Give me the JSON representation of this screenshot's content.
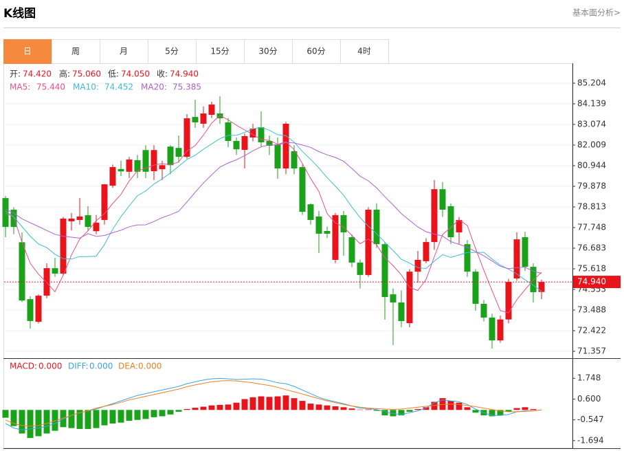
{
  "header": {
    "title": "K线图",
    "link": "基本面分析>"
  },
  "tabs": {
    "items": [
      "日",
      "周",
      "月",
      "5分",
      "15分",
      "30分",
      "60分",
      "4时"
    ],
    "active": 0
  },
  "chart_data": [
    {
      "type": "candlestick",
      "grid": true,
      "up_color": "#e8141c",
      "down_color": "#1aa31a",
      "info_value_color": "#e8141c",
      "info": [
        {
          "name": "开:",
          "value": 74.42,
          "label": "74.420"
        },
        {
          "name": "高:",
          "value": 75.06,
          "label": "75.060"
        },
        {
          "name": "低:",
          "value": 74.05,
          "label": "74.050"
        },
        {
          "name": "收:",
          "value": 74.94,
          "label": "74.940"
        }
      ],
      "last_price": {
        "value": 74.94,
        "label": "74.940"
      },
      "ylim": [
        71.037,
        86.198
      ],
      "yticks": [
        85.204,
        84.139,
        83.074,
        82.009,
        80.944,
        79.878,
        78.813,
        77.748,
        76.683,
        75.618,
        74.553,
        73.488,
        72.422,
        71.357
      ],
      "open": [
        79.27,
        78.67,
        76.99,
        74.05,
        72.88,
        74.23,
        75.65,
        75.37,
        78.07,
        78.14,
        78.39,
        77.56,
        78.14,
        79.91,
        80.77,
        80.63,
        81.23,
        81.75,
        80.66,
        80.76,
        81.93,
        81.86,
        81.4,
        83.46,
        83.11,
        83.57,
        83.64,
        83.18,
        82.22,
        81.76,
        82.4,
        82.93,
        82.22,
        82.04,
        80.8,
        81.69,
        80.87,
        78.95,
        78.32,
        77.57,
        76.08,
        78.39,
        77.25,
        75.94,
        75.3,
        78.67,
        76.89,
        74.3,
        73.88,
        72.81,
        75.47,
        76.01,
        77.0,
        79.73,
        78.85,
        77.5,
        76.89,
        75.47,
        73.81,
        73.1,
        71.92,
        73.0,
        75.12,
        77.25,
        75.72,
        74.42
      ],
      "high": [
        79.38,
        78.8,
        77.5,
        74.2,
        74.3,
        75.9,
        76.18,
        78.3,
        78.5,
        79.27,
        78.85,
        78.4,
        80.0,
        81.0,
        81.2,
        81.4,
        81.5,
        82.0,
        82.0,
        81.2,
        82.0,
        82.5,
        83.6,
        84.35,
        84.0,
        84.25,
        84.53,
        83.4,
        82.4,
        82.6,
        83.1,
        83.75,
        82.5,
        82.4,
        83.2,
        82.0,
        81.0,
        79.0,
        78.6,
        77.8,
        78.5,
        78.6,
        77.4,
        76.1,
        78.8,
        79.0,
        77.0,
        74.6,
        74.5,
        75.6,
        76.54,
        77.2,
        80.2,
        80.1,
        79.0,
        78.3,
        77.1,
        75.6,
        74.0,
        73.3,
        73.2,
        75.1,
        77.5,
        77.53,
        75.9,
        75.06
      ],
      "low": [
        77.25,
        77.4,
        73.9,
        72.53,
        72.8,
        74.1,
        75.2,
        75.3,
        77.6,
        77.9,
        77.6,
        77.4,
        77.9,
        79.8,
        80.4,
        80.3,
        80.3,
        80.3,
        80.2,
        80.2,
        80.5,
        81.1,
        81.3,
        82.9,
        82.9,
        83.4,
        83.1,
        81.9,
        81.5,
        80.8,
        82.2,
        81.9,
        81.5,
        80.27,
        80.5,
        80.5,
        78.4,
        77.9,
        76.43,
        77.2,
        75.9,
        76.29,
        75.7,
        74.6,
        75.2,
        76.7,
        72.99,
        71.68,
        72.6,
        72.6,
        74.9,
        75.9,
        76.6,
        78.3,
        76.9,
        76.9,
        75.2,
        73.45,
        72.9,
        71.5,
        71.8,
        72.8,
        75.0,
        75.5,
        73.88,
        74.05
      ],
      "close": [
        77.78,
        77.78,
        73.98,
        72.92,
        74.23,
        75.65,
        75.37,
        78.21,
        78.21,
        78.32,
        77.78,
        78.0,
        79.98,
        80.87,
        80.65,
        81.26,
        80.63,
        80.63,
        81.75,
        80.97,
        80.97,
        81.4,
        83.39,
        83.18,
        83.64,
        84.1,
        83.39,
        82.22,
        81.79,
        82.47,
        82.86,
        82.15,
        81.97,
        80.8,
        83.11,
        80.8,
        78.56,
        78.14,
        77.43,
        77.43,
        78.39,
        77.5,
        75.94,
        75.3,
        78.67,
        76.89,
        74.16,
        73.88,
        72.92,
        75.47,
        76.08,
        77.0,
        79.73,
        78.67,
        77.25,
        78.14,
        75.47,
        73.81,
        73.1,
        71.92,
        73.0,
        74.94,
        77.14,
        75.72,
        74.41,
        74.94
      ],
      "series": [
        {
          "name": "MA5:",
          "color": "#e84f8c",
          "legend_value": {
            "value": 75.44,
            "label": "75.440"
          },
          "values": [
            78.5,
            78.3,
            77.0,
            75.9,
            75.34,
            74.91,
            74.43,
            75.28,
            76.33,
            77.15,
            77.58,
            78.1,
            78.46,
            78.99,
            79.46,
            80.15,
            80.68,
            80.81,
            80.98,
            81.05,
            80.99,
            81.14,
            81.7,
            81.98,
            82.52,
            83.14,
            83.54,
            83.31,
            83.03,
            82.79,
            82.55,
            82.3,
            82.25,
            82.05,
            82.18,
            81.77,
            81.05,
            80.28,
            79.61,
            78.47,
            77.99,
            77.78,
            77.34,
            76.91,
            77.16,
            76.86,
            76.19,
            75.78,
            75.3,
            74.66,
            74.5,
            75.07,
            76.24,
            77.39,
            77.75,
            78.16,
            77.85,
            76.67,
            75.55,
            74.49,
            73.46,
            73.35,
            74.02,
            74.54,
            75.04,
            75.44
          ]
        },
        {
          "name": "MA10:",
          "color": "#3cbcd4",
          "legend_value": {
            "value": 74.452,
            "label": "74.452"
          },
          "values": [
            78.6,
            78.3,
            77.8,
            77.3,
            76.9,
            76.71,
            76.37,
            76.14,
            76.12,
            76.25,
            76.25,
            76.27,
            76.87,
            77.66,
            78.31,
            78.87,
            79.39,
            79.64,
            79.99,
            80.26,
            80.57,
            80.91,
            81.26,
            81.48,
            81.79,
            82.07,
            82.34,
            82.51,
            82.51,
            82.66,
            82.85,
            82.92,
            82.78,
            82.54,
            82.49,
            82.16,
            81.68,
            81.27,
            80.83,
            80.33,
            79.88,
            79.42,
            78.81,
            78.26,
            77.82,
            77.43,
            76.99,
            76.56,
            76.11,
            75.91,
            75.68,
            75.63,
            76.01,
            76.35,
            76.21,
            76.33,
            76.46,
            76.46,
            76.47,
            76.12,
            75.81,
            75.6,
            75.35,
            75.05,
            74.77,
            74.452
          ]
        },
        {
          "name": "MA20:",
          "color": "#b160d0",
          "legend_value": {
            "value": 75.385,
            "label": "75.385"
          },
          "values": [
            78.7,
            78.5,
            78.2,
            78.0,
            77.8,
            77.6,
            77.4,
            77.3,
            77.25,
            77.2,
            77.43,
            77.29,
            77.34,
            77.48,
            77.61,
            77.79,
            77.88,
            77.89,
            78.06,
            78.26,
            78.41,
            78.59,
            79.07,
            79.57,
            80.05,
            80.47,
            80.87,
            81.08,
            81.25,
            81.46,
            81.71,
            81.92,
            82.02,
            82.01,
            82.14,
            82.12,
            82.01,
            81.89,
            81.67,
            81.5,
            81.37,
            81.17,
            80.8,
            80.4,
            80.16,
            79.8,
            79.34,
            78.92,
            78.47,
            78.12,
            77.78,
            77.53,
            77.41,
            77.31,
            77.02,
            76.88,
            76.73,
            76.51,
            76.29,
            76.02,
            75.75,
            75.62,
            75.68,
            75.7,
            75.49,
            75.385
          ]
        }
      ]
    },
    {
      "type": "macd",
      "up_color": "#e8141c",
      "down_color": "#1aa31a",
      "ylim": [
        -2.115,
        2.819
      ],
      "yticks": [
        1.748,
        {
          "value": 0.6,
          "label": "0.600"
        },
        -0.547,
        -1.694
      ],
      "bars": {
        "name": "MACD:",
        "color": "#e8141c",
        "legend_value": {
          "value": 0,
          "label": "0.000"
        },
        "values": [
          -0.43,
          -0.89,
          -1.3,
          -1.55,
          -1.45,
          -1.3,
          -1.15,
          -0.95,
          -1.0,
          -1.05,
          -1.05,
          -1.0,
          -0.85,
          -0.75,
          -0.7,
          -0.6,
          -0.55,
          -0.5,
          -0.4,
          -0.35,
          -0.25,
          -0.1,
          0.05,
          0.12,
          0.18,
          0.25,
          0.28,
          0.3,
          0.4,
          0.6,
          0.7,
          0.75,
          0.72,
          0.75,
          0.8,
          0.65,
          0.5,
          0.35,
          0.3,
          0.25,
          0.2,
          0.15,
          0.08,
          0.02,
          0.03,
          -0.05,
          -0.3,
          -0.35,
          -0.3,
          -0.1,
          0.05,
          0.15,
          0.45,
          0.65,
          0.5,
          0.4,
          0.15,
          -0.15,
          -0.3,
          -0.35,
          -0.3,
          -0.1,
          0.1,
          0.15,
          0.05,
          0
        ]
      },
      "series": [
        {
          "name": "DIFF:",
          "color": "#3ba3e6",
          "legend_value": {
            "value": 0,
            "label": "0.000"
          },
          "values": [
            -0.75,
            -1.0,
            -1.1,
            -1.05,
            -1.0,
            -0.9,
            -0.75,
            -0.5,
            -0.3,
            -0.15,
            -0.05,
            0.05,
            0.2,
            0.35,
            0.5,
            0.65,
            0.8,
            0.9,
            1.0,
            1.1,
            1.2,
            1.3,
            1.45,
            1.55,
            1.65,
            1.72,
            1.74,
            1.72,
            1.68,
            1.7,
            1.72,
            1.7,
            1.62,
            1.5,
            1.45,
            1.3,
            1.1,
            0.9,
            0.7,
            0.55,
            0.45,
            0.35,
            0.22,
            0.1,
            0.08,
            0.02,
            -0.1,
            -0.2,
            -0.25,
            -0.15,
            -0.05,
            0.1,
            0.4,
            0.55,
            0.5,
            0.45,
            0.3,
            0.05,
            -0.15,
            -0.3,
            -0.3,
            -0.25,
            -0.1,
            -0.05,
            -0.05,
            0
          ]
        },
        {
          "name": "DEA:",
          "color": "#f08020",
          "legend_value": {
            "value": 0,
            "label": "0.000"
          },
          "values": [
            -0.55,
            -0.75,
            -0.85,
            -0.9,
            -0.85,
            -0.75,
            -0.6,
            -0.45,
            -0.3,
            -0.15,
            -0.05,
            0.1,
            0.2,
            0.3,
            0.42,
            0.55,
            0.65,
            0.75,
            0.85,
            0.95,
            1.05,
            1.15,
            1.28,
            1.38,
            1.47,
            1.55,
            1.6,
            1.62,
            1.6,
            1.55,
            1.5,
            1.42,
            1.35,
            1.25,
            1.12,
            1.0,
            0.88,
            0.75,
            0.62,
            0.5,
            0.4,
            0.3,
            0.22,
            0.15,
            0.1,
            0.07,
            0.05,
            0.03,
            0.05,
            0.1,
            0.15,
            0.2,
            0.25,
            0.3,
            0.32,
            0.3,
            0.25,
            0.18,
            0.1,
            0.02,
            -0.05,
            -0.1,
            -0.1,
            -0.08,
            -0.05,
            0
          ]
        }
      ]
    }
  ]
}
